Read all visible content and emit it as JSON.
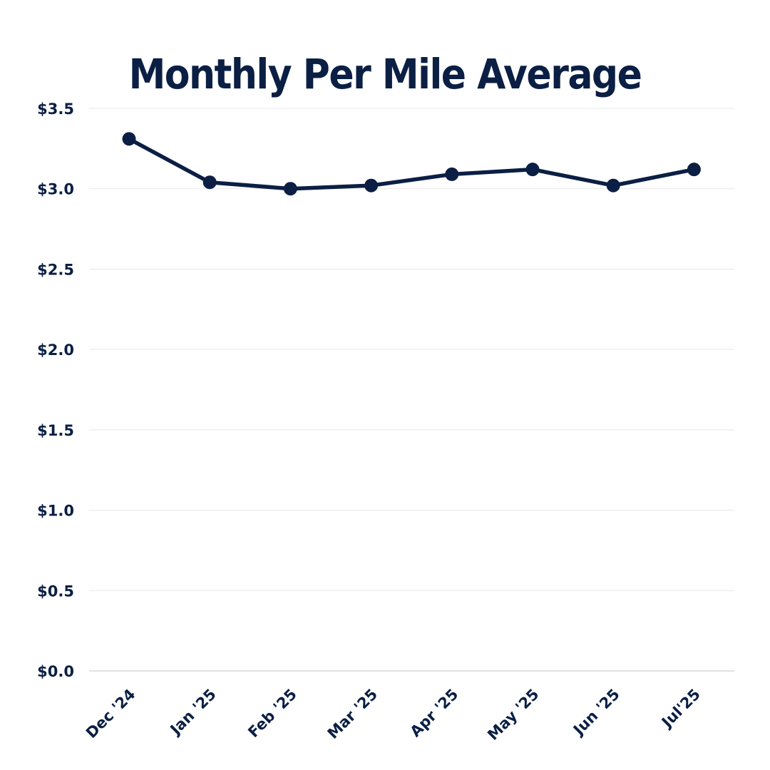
{
  "chart_data": {
    "type": "line",
    "title": "Monthly Per Mile Average",
    "xlabel": "",
    "ylabel": "",
    "categories": [
      "Dec '24",
      "Jan '25",
      "Feb '25",
      "Mar '25",
      "Apr '25",
      "May '25",
      "Jun '25",
      "Jul'25"
    ],
    "series": [
      {
        "values": [
          3.31,
          3.04,
          3.0,
          3.02,
          3.09,
          3.12,
          3.02,
          3.12
        ]
      }
    ],
    "ylim": [
      0,
      3.5
    ],
    "yticks": [
      0,
      0.5,
      1.0,
      1.5,
      2.0,
      2.5,
      3.0,
      3.5
    ],
    "ytick_labels": [
      "$0.0",
      "$0.5",
      "$1.0",
      "$1.5",
      "$2.0",
      "$2.5",
      "$3.0",
      "$3.5"
    ],
    "grid": true,
    "colors": {
      "line": "#0b1f44",
      "text": "#0b1f44",
      "grid": "#e8e8e8"
    }
  }
}
